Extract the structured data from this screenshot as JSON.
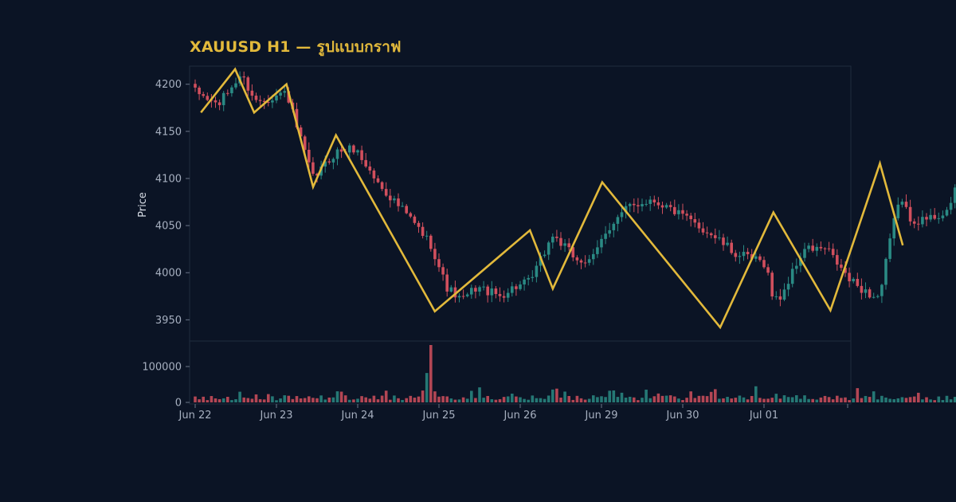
{
  "title": "XAUUSD H1 — รูปแบบกราฟ",
  "colors": {
    "background": "#0b1425",
    "up": "#2a8a84",
    "down": "#d14f5d",
    "pattern": "#e2b93b",
    "text": "#a7b0c0",
    "panel_border": "#1f2b3d"
  },
  "chart_data": {
    "type": "candlestick",
    "symbol": "XAUUSD",
    "timeframe": "H1",
    "ylabel": "Price",
    "price_ylim": [
      3930,
      4215
    ],
    "price_yticks": [
      3950,
      4000,
      4050,
      4100,
      4150,
      4200
    ],
    "volume_ylim": [
      0,
      160000
    ],
    "volume_yticks": [
      0,
      100000
    ],
    "x_ticks": [
      "Jun 22",
      "Jun 23",
      "Jun 24",
      "Jun 25",
      "Jun 26",
      "Jun 29",
      "Jun 30",
      "Jul 01"
    ],
    "bars_count": 192,
    "price_path": [
      [
        0,
        4192
      ],
      [
        6,
        4178
      ],
      [
        12,
        4210
      ],
      [
        16,
        4182
      ],
      [
        20,
        4186
      ],
      [
        24,
        4192
      ],
      [
        27,
        4150
      ],
      [
        31,
        4100
      ],
      [
        37,
        4128
      ],
      [
        42,
        4132
      ],
      [
        48,
        4095
      ],
      [
        56,
        4060
      ],
      [
        62,
        4030
      ],
      [
        66,
        3985
      ],
      [
        70,
        3970
      ],
      [
        74,
        3985
      ],
      [
        80,
        3975
      ],
      [
        84,
        3985
      ],
      [
        88,
        3990
      ],
      [
        94,
        4040
      ],
      [
        100,
        4015
      ],
      [
        104,
        4010
      ],
      [
        108,
        4045
      ],
      [
        114,
        4070
      ],
      [
        120,
        4078
      ],
      [
        124,
        4070
      ],
      [
        130,
        4055
      ],
      [
        136,
        4040
      ],
      [
        142,
        4020
      ],
      [
        146,
        4015
      ],
      [
        150,
        4010
      ],
      [
        152,
        3970
      ],
      [
        154,
        3975
      ],
      [
        160,
        4025
      ],
      [
        166,
        4025
      ],
      [
        172,
        3992
      ],
      [
        178,
        3975
      ],
      [
        180,
        3975
      ],
      [
        182,
        4020
      ],
      [
        185,
        4080
      ],
      [
        188,
        4058
      ],
      [
        191,
        4055
      ],
      [
        196,
        4062
      ],
      [
        199,
        4070
      ],
      [
        201,
        4122
      ],
      [
        204,
        4110
      ]
    ],
    "pattern_line": [
      {
        "x": 1.5,
        "y": 4170
      },
      {
        "x": 10.5,
        "y": 4216
      },
      {
        "x": 15.5,
        "y": 4170
      },
      {
        "x": 24,
        "y": 4200
      },
      {
        "x": 31,
        "y": 4091
      },
      {
        "x": 37,
        "y": 4146
      },
      {
        "x": 63,
        "y": 3959
      },
      {
        "x": 88,
        "y": 4045
      },
      {
        "x": 94,
        "y": 3983
      },
      {
        "x": 107,
        "y": 4096
      },
      {
        "x": 138,
        "y": 3942
      },
      {
        "x": 152,
        "y": 4064
      },
      {
        "x": 167,
        "y": 3960
      },
      {
        "x": 180,
        "y": 4116
      },
      {
        "x": 186,
        "y": 4029
      }
    ],
    "volume_spike": {
      "bar": 58,
      "value": 160000
    }
  }
}
